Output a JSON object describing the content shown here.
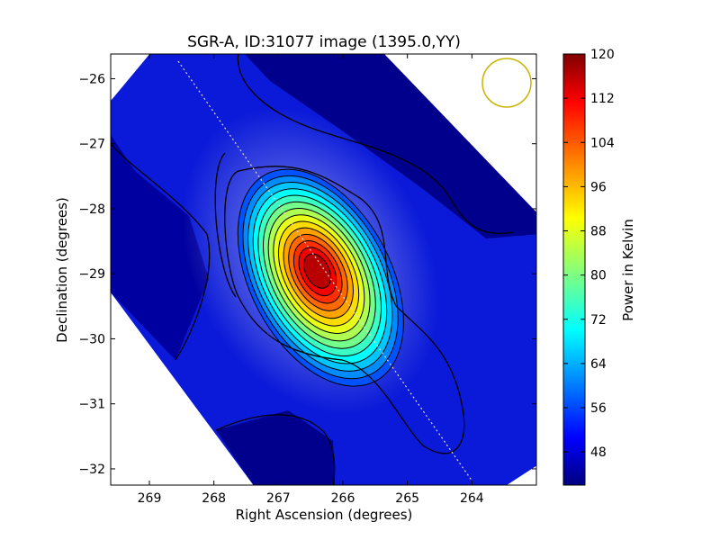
{
  "chart_data": {
    "type": "heatmap",
    "title": "SGR-A, ID:31077 image (1395.0,YY)",
    "xlabel": "Right Ascension (degrees)",
    "ylabel": "Declination (degrees)",
    "colorbar_label": "Power in Kelvin",
    "xlim": [
      269.6,
      263.0
    ],
    "ylim": [
      -32.25,
      -25.62
    ],
    "xticks": [
      269,
      268,
      267,
      266,
      265,
      264
    ],
    "yticks": [
      -26,
      -27,
      -28,
      -29,
      -30,
      -31,
      -32
    ],
    "colorbar_range": [
      42,
      120
    ],
    "colorbar_ticks": [
      48,
      56,
      64,
      72,
      80,
      88,
      96,
      104,
      112,
      120
    ],
    "colormap": "jet",
    "peak": {
      "ra": 266.4,
      "dec": -28.95,
      "value": 120
    },
    "contour_line_color": "#000000",
    "scan_track_color": "#dddddd",
    "beam_circle": {
      "ra": 263.45,
      "dec": -26.05,
      "color": "#c8b400"
    }
  }
}
